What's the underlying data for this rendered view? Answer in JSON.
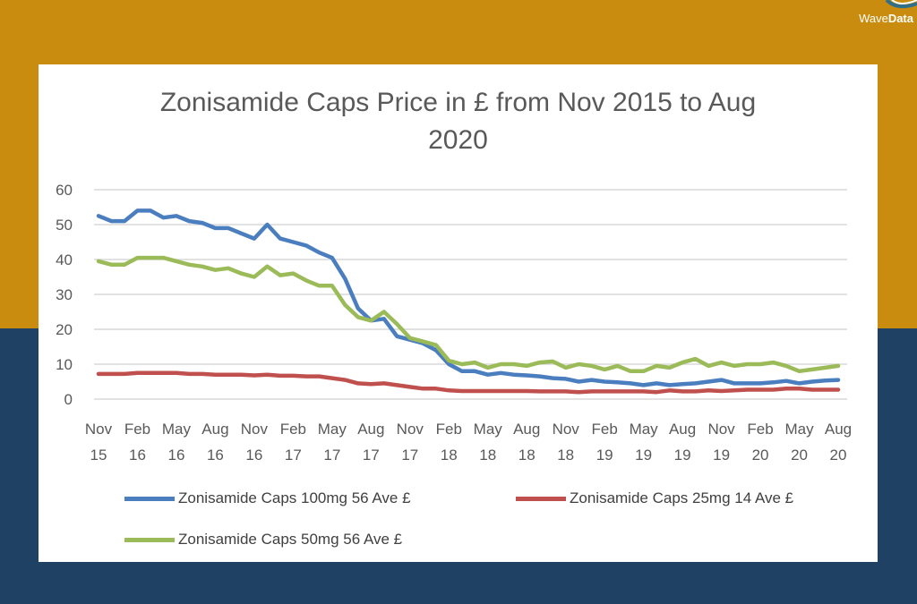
{
  "brand": {
    "name_part1": "Wave",
    "name_part2": "Data",
    "logo_icon": "wave-logo-icon"
  },
  "colors": {
    "background_top": "#c98c0e",
    "background_bottom": "#1f4264",
    "series_100mg": "#4a7ebf",
    "series_25mg": "#c0504d",
    "series_50mg": "#9bbb59",
    "grid": "#d9d9d9",
    "axis_text": "#595959"
  },
  "chart_data": {
    "type": "line",
    "title_line1": "Zonisamide Caps Price in £ from Nov 2015 to Aug",
    "title_line2": "2020",
    "xlabel": "",
    "ylabel": "",
    "ylim": [
      0,
      60
    ],
    "yticks": [
      "0",
      "10",
      "20",
      "30",
      "40",
      "50",
      "60"
    ],
    "grid": true,
    "legend_position": "bottom",
    "xtick_labels": [
      [
        "Nov",
        "15"
      ],
      [
        "Feb",
        "16"
      ],
      [
        "May",
        "16"
      ],
      [
        "Aug",
        "16"
      ],
      [
        "Nov",
        "16"
      ],
      [
        "Feb",
        "17"
      ],
      [
        "May",
        "17"
      ],
      [
        "Aug",
        "17"
      ],
      [
        "Nov",
        "17"
      ],
      [
        "Feb",
        "18"
      ],
      [
        "May",
        "18"
      ],
      [
        "Aug",
        "18"
      ],
      [
        "Nov",
        "18"
      ],
      [
        "Feb",
        "19"
      ],
      [
        "May",
        "19"
      ],
      [
        "Aug",
        "19"
      ],
      [
        "Nov",
        "19"
      ],
      [
        "Feb",
        "20"
      ],
      [
        "May",
        "20"
      ],
      [
        "Aug",
        "20"
      ]
    ],
    "x": [
      "2015-11",
      "2015-12",
      "2016-01",
      "2016-02",
      "2016-03",
      "2016-04",
      "2016-05",
      "2016-06",
      "2016-07",
      "2016-08",
      "2016-09",
      "2016-10",
      "2016-11",
      "2016-12",
      "2017-01",
      "2017-02",
      "2017-03",
      "2017-04",
      "2017-05",
      "2017-06",
      "2017-07",
      "2017-08",
      "2017-09",
      "2017-10",
      "2017-11",
      "2017-12",
      "2018-01",
      "2018-02",
      "2018-03",
      "2018-04",
      "2018-05",
      "2018-06",
      "2018-07",
      "2018-08",
      "2018-09",
      "2018-10",
      "2018-11",
      "2018-12",
      "2019-01",
      "2019-02",
      "2019-03",
      "2019-04",
      "2019-05",
      "2019-06",
      "2019-07",
      "2019-08",
      "2019-09",
      "2019-10",
      "2019-11",
      "2019-12",
      "2020-01",
      "2020-02",
      "2020-03",
      "2020-04",
      "2020-05",
      "2020-06",
      "2020-07",
      "2020-08"
    ],
    "series": [
      {
        "name": "Zonisamide Caps 100mg 56 Ave £",
        "values": [
          52.5,
          51.0,
          51.0,
          54.0,
          54.0,
          52.0,
          52.5,
          51.0,
          50.5,
          49.0,
          49.0,
          47.5,
          46.0,
          50.0,
          46.0,
          45.0,
          44.0,
          42.0,
          40.5,
          34.5,
          26.0,
          22.5,
          23.0,
          18.0,
          17.0,
          16.0,
          14.0,
          10.0,
          8.0,
          8.0,
          7.0,
          7.5,
          7.0,
          6.8,
          6.5,
          6.0,
          5.8,
          5.0,
          5.5,
          5.0,
          4.8,
          4.5,
          4.0,
          4.5,
          4.0,
          4.3,
          4.5,
          5.0,
          5.5,
          4.5,
          4.5,
          4.5,
          4.8,
          5.2,
          4.5,
          5.0,
          5.3,
          5.5
        ]
      },
      {
        "name": "Zonisamide Caps 25mg 14 Ave £",
        "values": [
          7.2,
          7.2,
          7.2,
          7.5,
          7.5,
          7.5,
          7.5,
          7.2,
          7.2,
          7.0,
          7.0,
          7.0,
          6.8,
          7.0,
          6.7,
          6.7,
          6.5,
          6.5,
          6.0,
          5.5,
          4.5,
          4.3,
          4.5,
          4.0,
          3.5,
          3.0,
          3.0,
          2.5,
          2.3,
          2.3,
          2.3,
          2.3,
          2.3,
          2.3,
          2.2,
          2.2,
          2.2,
          2.0,
          2.2,
          2.2,
          2.2,
          2.2,
          2.2,
          2.0,
          2.5,
          2.2,
          2.2,
          2.5,
          2.3,
          2.5,
          2.7,
          2.7,
          2.7,
          3.0,
          3.0,
          2.7,
          2.7,
          2.7
        ]
      },
      {
        "name": "Zonisamide Caps 50mg 56 Ave £",
        "values": [
          39.5,
          38.5,
          38.5,
          40.5,
          40.5,
          40.5,
          39.5,
          38.5,
          38.0,
          37.0,
          37.5,
          36.0,
          35.0,
          38.0,
          35.5,
          36.0,
          34.0,
          32.5,
          32.5,
          27.0,
          23.5,
          22.5,
          25.0,
          21.5,
          17.5,
          16.5,
          15.5,
          11.0,
          10.0,
          10.5,
          9.0,
          10.0,
          10.0,
          9.5,
          10.5,
          10.8,
          9.0,
          10.0,
          9.5,
          8.5,
          9.5,
          8.0,
          8.0,
          9.5,
          9.0,
          10.5,
          11.5,
          9.5,
          10.5,
          9.5,
          10.0,
          10.0,
          10.5,
          9.5,
          8.0,
          8.5,
          9.0,
          9.5
        ]
      }
    ]
  }
}
